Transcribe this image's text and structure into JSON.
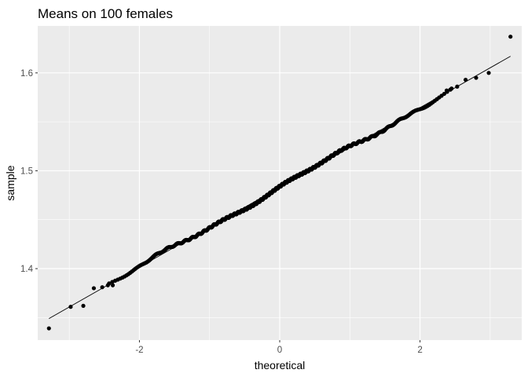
{
  "chart_data": {
    "type": "scatter",
    "subtype": "qq-plot",
    "title": "Means on 100 females",
    "xlabel": "theoretical",
    "ylabel": "sample",
    "xlim": [
      -3.45,
      3.45
    ],
    "ylim": [
      1.327,
      1.648
    ],
    "x_ticks": [
      -2,
      0,
      2
    ],
    "x_tick_labels": [
      "-2",
      "0",
      "2"
    ],
    "y_ticks": [
      1.4,
      1.5,
      1.6
    ],
    "y_tick_labels": [
      "1.4",
      "1.5",
      "1.6"
    ],
    "grid": true,
    "background": "#ebebeb",
    "grid_color": "#ffffff",
    "point_color": "#000000",
    "reference_line": {
      "x": [
        -3.29,
        3.29
      ],
      "y": [
        1.349,
        1.617
      ],
      "color": "#000000"
    },
    "sample_size": 1000,
    "center": 1.483,
    "slope": 0.0407,
    "notable_points": [
      {
        "x": -3.29,
        "y": 1.339
      },
      {
        "x": -2.98,
        "y": 1.361
      },
      {
        "x": -2.8,
        "y": 1.362
      },
      {
        "x": -2.65,
        "y": 1.38
      },
      {
        "x": -2.53,
        "y": 1.381
      },
      {
        "x": -2.45,
        "y": 1.383
      },
      {
        "x": -2.38,
        "y": 1.383
      },
      {
        "x": 2.38,
        "y": 1.582
      },
      {
        "x": 2.45,
        "y": 1.584
      },
      {
        "x": 2.53,
        "y": 1.586
      },
      {
        "x": 2.65,
        "y": 1.593
      },
      {
        "x": 2.8,
        "y": 1.595
      },
      {
        "x": 2.98,
        "y": 1.6
      },
      {
        "x": 3.29,
        "y": 1.637
      }
    ]
  }
}
